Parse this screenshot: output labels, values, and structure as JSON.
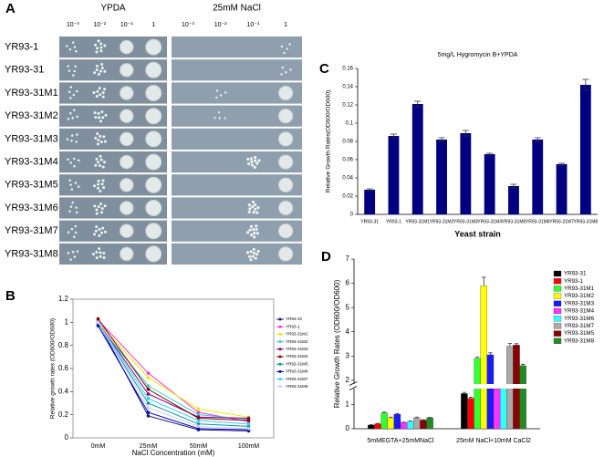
{
  "spot_assay": {
    "panel": "A",
    "conditions": [
      "YPDA",
      "25mM NaCl"
    ],
    "dilutions": [
      "10⁻³",
      "10⁻²",
      "10⁻¹",
      "1"
    ],
    "strains": [
      "YR93-1",
      "YR93-31",
      "YR93-31M1",
      "YR93-31M2",
      "YR93-31M3",
      "YR93-31M4",
      "YR93-31M5",
      "YR93-31M6",
      "YR93-31M7",
      "YR93-31M8"
    ]
  },
  "chart_data": [
    {
      "panel": "B",
      "type": "line",
      "x_label": "NaCl Concentration (mM)",
      "y_label": "Relative growth rates (OD600/OD600)",
      "categories": [
        "0mM",
        "25mM",
        "50mM",
        "100mM"
      ],
      "ylim": [
        0,
        1.2
      ],
      "yticks": [
        0,
        0.2,
        0.4,
        0.6,
        0.8,
        1,
        1.2
      ],
      "series": [
        {
          "name": "YR93-31",
          "color": "#1a1a6e",
          "values": [
            1.0,
            0.19,
            0.07,
            0.06
          ]
        },
        {
          "name": "YR93-1",
          "color": "#ff33cc",
          "values": [
            1.02,
            0.56,
            0.22,
            0.14
          ]
        },
        {
          "name": "YR93-31M1",
          "color": "#f2e600",
          "values": [
            1.0,
            0.52,
            0.25,
            0.18
          ]
        },
        {
          "name": "YR93-31M2",
          "color": "#33cccc",
          "values": [
            0.98,
            0.45,
            0.2,
            0.16
          ]
        },
        {
          "name": "YR93-31M3",
          "color": "#800080",
          "values": [
            1.0,
            0.38,
            0.18,
            0.17
          ]
        },
        {
          "name": "YR93-31M4",
          "color": "#800000",
          "values": [
            1.03,
            0.42,
            0.17,
            0.15
          ]
        },
        {
          "name": "YR93-31M5",
          "color": "#009999",
          "values": [
            0.99,
            0.3,
            0.12,
            0.1
          ]
        },
        {
          "name": "YR93-31M6",
          "color": "#0000cc",
          "values": [
            0.97,
            0.22,
            0.08,
            0.07
          ]
        },
        {
          "name": "YR93-31M7",
          "color": "#33ccff",
          "values": [
            1.0,
            0.34,
            0.15,
            0.12
          ]
        },
        {
          "name": "YR93-31M8",
          "color": "#ccccff",
          "values": [
            1.0,
            0.26,
            0.1,
            0.08
          ]
        }
      ]
    },
    {
      "panel": "C",
      "type": "bar",
      "title": "5mg/L  Hygromycin B+YPDA",
      "x_label": "Yeast strain",
      "y_label": "Relative Growth Rates(OD600/OD600)",
      "categories": [
        "YR93-31",
        "YR93-1",
        "YR93-31M1",
        "YR93-31M2",
        "YR93-31M3",
        "YR93-31M4",
        "YR93-31M5",
        "YR93-31M6",
        "YR93-31M7",
        "YR93-31M8"
      ],
      "values": [
        0.027,
        0.086,
        0.121,
        0.082,
        0.089,
        0.066,
        0.031,
        0.082,
        0.055,
        0.142
      ],
      "errors": [
        0.001,
        0.002,
        0.003,
        0.002,
        0.003,
        0.001,
        0.002,
        0.002,
        0.001,
        0.006
      ],
      "color": "#000080",
      "ylim": [
        0,
        0.16
      ],
      "yticks": [
        0,
        0.02,
        0.04,
        0.06,
        0.08,
        0.1,
        0.12,
        0.14,
        0.16
      ]
    },
    {
      "panel": "D",
      "type": "bar",
      "y_label": "Relative Growth Rates (OD600/OD600)",
      "categories": [
        "5mMEGTA+25mMNaCl",
        "25mM NaCl+10mM CaCl2"
      ],
      "ylim": [
        0,
        7
      ],
      "yticks": [
        0,
        1,
        2,
        3,
        4,
        5,
        6,
        7
      ],
      "axis_break": true,
      "series": [
        {
          "name": "YR93-31",
          "color": "#000000",
          "values": [
            0.15,
            1.45
          ],
          "errors": [
            0.02,
            0.05
          ]
        },
        {
          "name": "YR93-1",
          "color": "#ff0000",
          "values": [
            0.2,
            1.25
          ],
          "errors": [
            0.02,
            0.05
          ]
        },
        {
          "name": "YR93-31M1",
          "color": "#33ff33",
          "values": [
            0.65,
            2.9
          ],
          "errors": [
            0.03,
            0.05
          ]
        },
        {
          "name": "YR93-31M2",
          "color": "#ffff00",
          "values": [
            0.45,
            5.9
          ],
          "errors": [
            0.03,
            0.35
          ]
        },
        {
          "name": "YR93-31M3",
          "color": "#1a1aff",
          "values": [
            0.6,
            3.05
          ],
          "errors": [
            0.03,
            0.08
          ]
        },
        {
          "name": "YR93-31M4",
          "color": "#ff33ff",
          "values": [
            0.25,
            1.65
          ],
          "errors": [
            0.02,
            0.04
          ]
        },
        {
          "name": "YR93-31M6",
          "color": "#33ffff",
          "values": [
            0.3,
            1.7
          ],
          "errors": [
            0.02,
            0.04
          ]
        },
        {
          "name": "YR93-31M7",
          "color": "#aaaaaa",
          "values": [
            0.45,
            3.4
          ],
          "errors": [
            0.03,
            0.12
          ]
        },
        {
          "name": "YR93-31M5",
          "color": "#8b0000",
          "values": [
            0.35,
            3.45
          ],
          "errors": [
            0.02,
            0.06
          ]
        },
        {
          "name": "YR93-31M8",
          "color": "#228b22",
          "values": [
            0.45,
            2.6
          ],
          "errors": [
            0.02,
            0.06
          ]
        }
      ]
    }
  ]
}
